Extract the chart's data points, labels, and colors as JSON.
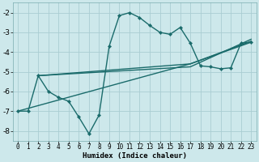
{
  "bg_color": "#cde8eb",
  "grid_color": "#aacdd2",
  "line_color": "#1a6b6b",
  "xlabel": "Humidex (Indice chaleur)",
  "xlim": [
    -0.5,
    23.5
  ],
  "ylim": [
    -8.5,
    -1.5
  ],
  "xticks": [
    0,
    1,
    2,
    3,
    4,
    5,
    6,
    7,
    8,
    9,
    10,
    11,
    12,
    13,
    14,
    15,
    16,
    17,
    18,
    19,
    20,
    21,
    22,
    23
  ],
  "yticks": [
    -8,
    -7,
    -6,
    -5,
    -4,
    -3,
    -2
  ],
  "series_main": {
    "x": [
      0,
      1,
      2,
      3,
      4,
      5,
      6,
      7,
      8,
      9,
      10,
      11,
      12,
      13,
      14,
      15,
      16,
      17,
      18,
      19,
      20,
      21,
      22,
      23
    ],
    "y": [
      -7.0,
      -7.0,
      -5.2,
      -6.0,
      -6.3,
      -6.5,
      -7.3,
      -8.15,
      -7.2,
      -3.7,
      -2.15,
      -2.0,
      -2.25,
      -2.65,
      -3.0,
      -3.1,
      -2.75,
      -3.55,
      -4.7,
      -4.75,
      -4.85,
      -4.8,
      -3.55,
      -3.5
    ]
  },
  "series_lines": [
    {
      "x": [
        2,
        17,
        23
      ],
      "y": [
        -5.2,
        -4.6,
        -3.5
      ]
    },
    {
      "x": [
        2,
        17,
        23
      ],
      "y": [
        -5.2,
        -4.75,
        -3.35
      ]
    },
    {
      "x": [
        0,
        17,
        23
      ],
      "y": [
        -7.0,
        -4.6,
        -3.45
      ]
    }
  ]
}
